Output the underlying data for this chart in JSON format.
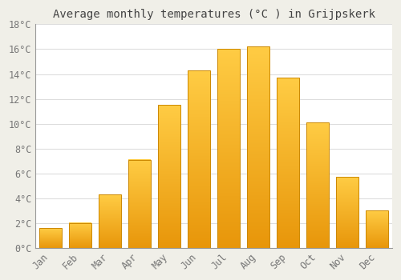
{
  "title": "Average monthly temperatures (°C ) in Grijpskerk",
  "months": [
    "Jan",
    "Feb",
    "Mar",
    "Apr",
    "May",
    "Jun",
    "Jul",
    "Aug",
    "Sep",
    "Oct",
    "Nov",
    "Dec"
  ],
  "values": [
    1.6,
    2.0,
    4.3,
    7.1,
    11.5,
    14.3,
    16.0,
    16.2,
    13.7,
    10.1,
    5.7,
    3.0
  ],
  "bar_color_bottom": "#E8960A",
  "bar_color_top": "#FFCC44",
  "bar_edge_color": "#CC8800",
  "background_color": "#F0EFE8",
  "plot_bg_color": "#FFFFFF",
  "grid_color": "#DDDDDD",
  "title_color": "#444444",
  "tick_label_color": "#777777",
  "ylim": [
    0,
    18
  ],
  "yticks": [
    0,
    2,
    4,
    6,
    8,
    10,
    12,
    14,
    16,
    18
  ],
  "title_fontsize": 10,
  "tick_fontsize": 8.5,
  "bar_width": 0.75
}
